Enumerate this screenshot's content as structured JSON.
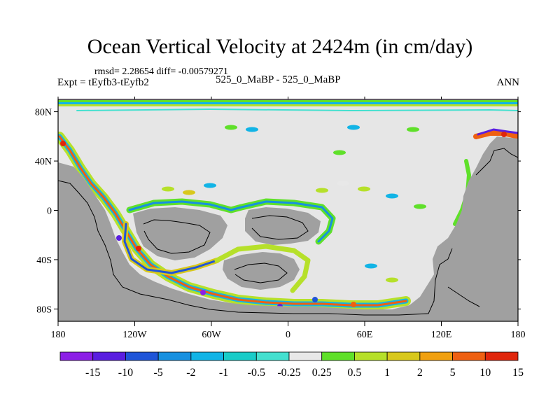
{
  "chart_data": {
    "type": "heatmap",
    "title": "Ocean Vertical Velocity at 2424m (in cm/day)",
    "stats_text": "rmsd= 2.28654 diff= -0.00579271",
    "expt_text": "Expt = tEyfb3-tEyfb2",
    "cases_text": "525_0_MaBP - 525_0_MaBP",
    "season": "ANN",
    "x_ticks": [
      "180",
      "120W",
      "60W",
      "0",
      "60E",
      "120E",
      "180"
    ],
    "x_tick_values": [
      -180,
      -120,
      -60,
      0,
      60,
      120,
      180
    ],
    "y_ticks": [
      "80N",
      "40N",
      "0",
      "40S",
      "80S"
    ],
    "y_tick_values": [
      80,
      40,
      0,
      -40,
      -80
    ],
    "xlim": [
      -180,
      180
    ],
    "ylim": [
      -90,
      90
    ],
    "colorbar": {
      "levels": [
        "-15",
        "-10",
        "-5",
        "-2",
        "-1",
        "-0.5",
        "-0.25",
        "0.25",
        "0.5",
        "1",
        "2",
        "5",
        "10",
        "15"
      ],
      "colors": [
        "#8c1fe6",
        "#5a1ee0",
        "#1f55d8",
        "#1790e0",
        "#12b4e6",
        "#19ccc8",
        "#44e0cf",
        "#e8e8e8",
        "#5fe02a",
        "#b6e02a",
        "#d8c81c",
        "#f0a011",
        "#ee6012",
        "#e0260c"
      ]
    },
    "land_color": "#a0a0a0",
    "neutral_color": "#e6e6e6"
  }
}
